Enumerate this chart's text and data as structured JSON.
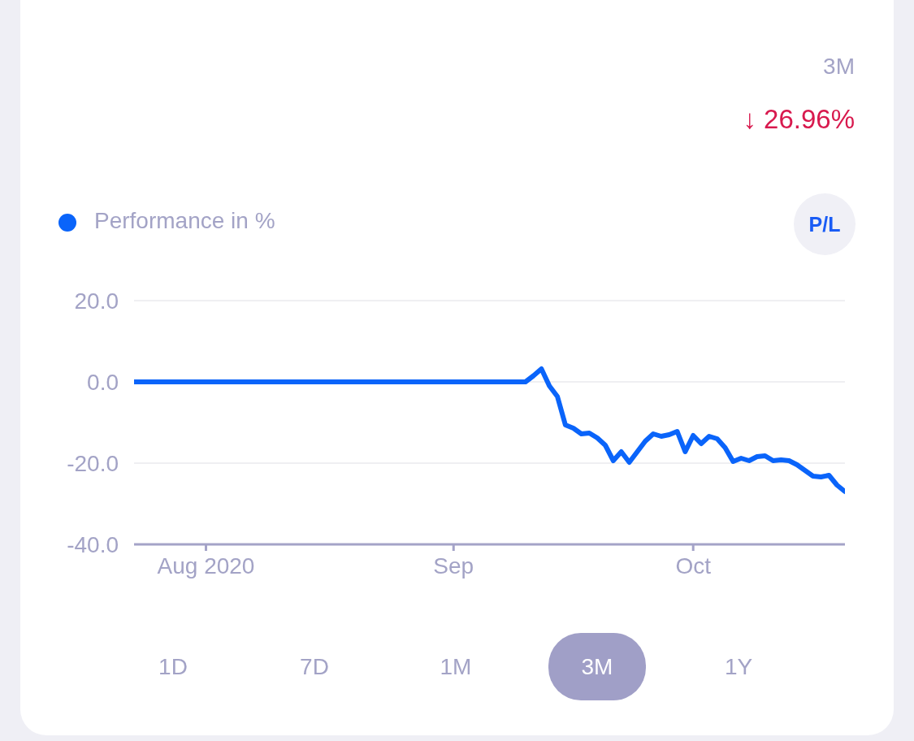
{
  "chart_data": {
    "type": "line",
    "x": [
      "2020-07-23",
      "2020-09-10",
      "2020-09-11",
      "2020-09-12",
      "2020-09-13",
      "2020-09-14",
      "2020-09-15",
      "2020-09-16",
      "2020-09-17",
      "2020-09-18",
      "2020-09-19",
      "2020-09-20",
      "2020-09-21",
      "2020-09-22",
      "2020-09-23",
      "2020-09-24",
      "2020-09-25",
      "2020-09-26",
      "2020-09-27",
      "2020-09-28",
      "2020-09-29",
      "2020-09-30",
      "2020-10-01",
      "2020-10-02",
      "2020-10-03",
      "2020-10-04",
      "2020-10-05",
      "2020-10-06",
      "2020-10-07",
      "2020-10-08",
      "2020-10-09",
      "2020-10-10",
      "2020-10-11",
      "2020-10-12",
      "2020-10-13",
      "2020-10-14",
      "2020-10-15",
      "2020-10-16",
      "2020-10-17",
      "2020-10-18",
      "2020-10-19",
      "2020-10-20"
    ],
    "series": [
      {
        "name": "Performance in %",
        "color": "#0a64fa",
        "values": [
          0,
          0,
          1.5,
          3.2,
          -1.0,
          -3.6,
          -10.6,
          -11.4,
          -12.8,
          -12.6,
          -13.8,
          -15.6,
          -19.4,
          -17.2,
          -19.8,
          -17.2,
          -14.6,
          -12.8,
          -13.4,
          -13.0,
          -12.2,
          -17.2,
          -13.2,
          -15.2,
          -13.4,
          -14.0,
          -16.2,
          -19.6,
          -18.8,
          -19.4,
          -18.4,
          -18.2,
          -19.4,
          -19.2,
          -19.4,
          -20.4,
          -21.8,
          -23.2,
          -23.4,
          -23.0,
          -25.4,
          -27.0
        ]
      }
    ],
    "xlim": [
      "2020-07-23",
      "2020-10-20"
    ],
    "xticks": [
      {
        "value": "2020-08-01",
        "label": "Aug 2020"
      },
      {
        "value": "2020-09-01",
        "label": "Sep"
      },
      {
        "value": "2020-10-01",
        "label": "Oct"
      }
    ],
    "ylim": [
      -40,
      20
    ],
    "yticks": [
      {
        "value": -40,
        "label": "-40.0"
      },
      {
        "value": -20,
        "label": "-20.0"
      },
      {
        "value": 0,
        "label": "0.0"
      },
      {
        "value": 20,
        "label": "20.0"
      }
    ],
    "grid": "y",
    "legend": "top left",
    "marker": "none",
    "line_style": "solid",
    "annotations": [
      "3M",
      "↓ 26.96%",
      "P/L",
      "1D",
      "7D",
      "1M",
      "3M",
      "1Y"
    ]
  }
}
